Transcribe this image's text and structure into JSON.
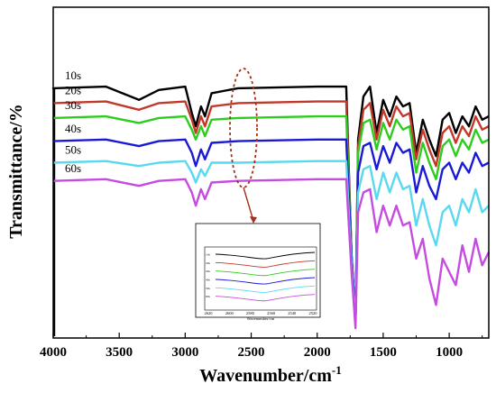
{
  "chart_data": {
    "type": "line",
    "xlabel": "Wavenumber/cm",
    "xlabel_superscript": "-1",
    "ylabel": "Transmittance/%",
    "xlim": [
      4000,
      700
    ],
    "x_reversed": true,
    "x_ticks": [
      "4000",
      "3500",
      "3000",
      "2500",
      "2000",
      "1500",
      "1000"
    ],
    "grid": false,
    "legend": "none",
    "series": [
      {
        "name": "10s",
        "color": "#000000",
        "baseline": 0.24,
        "points": [
          [
            4000,
            0.245
          ],
          [
            3600,
            0.24
          ],
          [
            3350,
            0.28
          ],
          [
            3200,
            0.25
          ],
          [
            3000,
            0.24
          ],
          [
            2950,
            0.32
          ],
          [
            2920,
            0.36
          ],
          [
            2880,
            0.3
          ],
          [
            2850,
            0.33
          ],
          [
            2800,
            0.26
          ],
          [
            2600,
            0.245
          ],
          [
            2000,
            0.24
          ],
          [
            1780,
            0.24
          ],
          [
            1740,
            0.75
          ],
          [
            1710,
            0.95
          ],
          [
            1690,
            0.4
          ],
          [
            1650,
            0.27
          ],
          [
            1600,
            0.24
          ],
          [
            1550,
            0.38
          ],
          [
            1500,
            0.28
          ],
          [
            1450,
            0.33
          ],
          [
            1400,
            0.27
          ],
          [
            1350,
            0.3
          ],
          [
            1300,
            0.29
          ],
          [
            1250,
            0.44
          ],
          [
            1200,
            0.34
          ],
          [
            1150,
            0.4
          ],
          [
            1100,
            0.45
          ],
          [
            1050,
            0.34
          ],
          [
            1000,
            0.32
          ],
          [
            950,
            0.38
          ],
          [
            900,
            0.33
          ],
          [
            850,
            0.36
          ],
          [
            800,
            0.3
          ],
          [
            750,
            0.34
          ],
          [
            700,
            0.33
          ]
        ]
      },
      {
        "name": "20s",
        "color": "#c0392b",
        "baseline": 0.285,
        "points": [
          [
            4000,
            0.29
          ],
          [
            3600,
            0.285
          ],
          [
            3350,
            0.31
          ],
          [
            3200,
            0.29
          ],
          [
            3000,
            0.285
          ],
          [
            2950,
            0.34
          ],
          [
            2920,
            0.38
          ],
          [
            2880,
            0.33
          ],
          [
            2850,
            0.36
          ],
          [
            2800,
            0.3
          ],
          [
            2600,
            0.29
          ],
          [
            2000,
            0.285
          ],
          [
            1780,
            0.285
          ],
          [
            1740,
            0.75
          ],
          [
            1710,
            0.95
          ],
          [
            1690,
            0.42
          ],
          [
            1650,
            0.31
          ],
          [
            1600,
            0.29
          ],
          [
            1550,
            0.4
          ],
          [
            1500,
            0.31
          ],
          [
            1450,
            0.36
          ],
          [
            1400,
            0.3
          ],
          [
            1350,
            0.33
          ],
          [
            1300,
            0.32
          ],
          [
            1250,
            0.46
          ],
          [
            1200,
            0.37
          ],
          [
            1150,
            0.43
          ],
          [
            1100,
            0.48
          ],
          [
            1050,
            0.38
          ],
          [
            1000,
            0.36
          ],
          [
            950,
            0.41
          ],
          [
            900,
            0.36
          ],
          [
            850,
            0.39
          ],
          [
            800,
            0.33
          ],
          [
            750,
            0.37
          ],
          [
            700,
            0.36
          ]
        ]
      },
      {
        "name": "30s",
        "color": "#2ecc1f",
        "baseline": 0.33,
        "points": [
          [
            4000,
            0.335
          ],
          [
            3600,
            0.33
          ],
          [
            3350,
            0.35
          ],
          [
            3200,
            0.335
          ],
          [
            3000,
            0.33
          ],
          [
            2950,
            0.37
          ],
          [
            2920,
            0.4
          ],
          [
            2880,
            0.36
          ],
          [
            2850,
            0.39
          ],
          [
            2800,
            0.34
          ],
          [
            2600,
            0.335
          ],
          [
            2000,
            0.33
          ],
          [
            1780,
            0.33
          ],
          [
            1740,
            0.75
          ],
          [
            1710,
            0.95
          ],
          [
            1690,
            0.44
          ],
          [
            1650,
            0.35
          ],
          [
            1600,
            0.34
          ],
          [
            1550,
            0.43
          ],
          [
            1500,
            0.35
          ],
          [
            1450,
            0.4
          ],
          [
            1400,
            0.34
          ],
          [
            1350,
            0.37
          ],
          [
            1300,
            0.36
          ],
          [
            1250,
            0.5
          ],
          [
            1200,
            0.41
          ],
          [
            1150,
            0.47
          ],
          [
            1100,
            0.52
          ],
          [
            1050,
            0.42
          ],
          [
            1000,
            0.4
          ],
          [
            950,
            0.45
          ],
          [
            900,
            0.4
          ],
          [
            850,
            0.43
          ],
          [
            800,
            0.37
          ],
          [
            750,
            0.41
          ],
          [
            700,
            0.4
          ]
        ]
      },
      {
        "name": "40s",
        "color": "#1a1ad4",
        "baseline": 0.4,
        "points": [
          [
            4000,
            0.405
          ],
          [
            3600,
            0.4
          ],
          [
            3350,
            0.42
          ],
          [
            3200,
            0.405
          ],
          [
            3000,
            0.4
          ],
          [
            2950,
            0.44
          ],
          [
            2920,
            0.48
          ],
          [
            2880,
            0.43
          ],
          [
            2850,
            0.46
          ],
          [
            2800,
            0.41
          ],
          [
            2600,
            0.405
          ],
          [
            2000,
            0.4
          ],
          [
            1780,
            0.4
          ],
          [
            1740,
            0.75
          ],
          [
            1710,
            0.95
          ],
          [
            1690,
            0.5
          ],
          [
            1650,
            0.42
          ],
          [
            1600,
            0.41
          ],
          [
            1550,
            0.49
          ],
          [
            1500,
            0.42
          ],
          [
            1450,
            0.47
          ],
          [
            1400,
            0.41
          ],
          [
            1350,
            0.44
          ],
          [
            1300,
            0.43
          ],
          [
            1250,
            0.56
          ],
          [
            1200,
            0.48
          ],
          [
            1150,
            0.54
          ],
          [
            1100,
            0.58
          ],
          [
            1050,
            0.49
          ],
          [
            1000,
            0.47
          ],
          [
            950,
            0.52
          ],
          [
            900,
            0.47
          ],
          [
            850,
            0.5
          ],
          [
            800,
            0.44
          ],
          [
            750,
            0.48
          ],
          [
            700,
            0.47
          ]
        ]
      },
      {
        "name": "50s",
        "color": "#5ad8ee",
        "baseline": 0.465,
        "points": [
          [
            4000,
            0.47
          ],
          [
            3600,
            0.465
          ],
          [
            3350,
            0.48
          ],
          [
            3200,
            0.47
          ],
          [
            3000,
            0.465
          ],
          [
            2950,
            0.5
          ],
          [
            2920,
            0.53
          ],
          [
            2880,
            0.49
          ],
          [
            2850,
            0.51
          ],
          [
            2800,
            0.47
          ],
          [
            2600,
            0.47
          ],
          [
            2000,
            0.465
          ],
          [
            1780,
            0.465
          ],
          [
            1740,
            0.78
          ],
          [
            1710,
            0.96
          ],
          [
            1690,
            0.56
          ],
          [
            1650,
            0.49
          ],
          [
            1600,
            0.48
          ],
          [
            1550,
            0.58
          ],
          [
            1500,
            0.5
          ],
          [
            1450,
            0.56
          ],
          [
            1400,
            0.5
          ],
          [
            1350,
            0.55
          ],
          [
            1300,
            0.54
          ],
          [
            1250,
            0.66
          ],
          [
            1200,
            0.58
          ],
          [
            1150,
            0.66
          ],
          [
            1100,
            0.72
          ],
          [
            1050,
            0.62
          ],
          [
            1000,
            0.6
          ],
          [
            950,
            0.66
          ],
          [
            900,
            0.58
          ],
          [
            850,
            0.62
          ],
          [
            800,
            0.55
          ],
          [
            750,
            0.62
          ],
          [
            700,
            0.6
          ]
        ]
      },
      {
        "name": "60s",
        "color": "#c64be0",
        "baseline": 0.52,
        "points": [
          [
            4000,
            0.525
          ],
          [
            3600,
            0.52
          ],
          [
            3350,
            0.54
          ],
          [
            3200,
            0.525
          ],
          [
            3000,
            0.52
          ],
          [
            2950,
            0.56
          ],
          [
            2920,
            0.6
          ],
          [
            2880,
            0.55
          ],
          [
            2850,
            0.58
          ],
          [
            2800,
            0.53
          ],
          [
            2600,
            0.525
          ],
          [
            2000,
            0.52
          ],
          [
            1780,
            0.52
          ],
          [
            1740,
            0.8
          ],
          [
            1710,
            0.97
          ],
          [
            1690,
            0.62
          ],
          [
            1650,
            0.56
          ],
          [
            1600,
            0.55
          ],
          [
            1550,
            0.68
          ],
          [
            1500,
            0.6
          ],
          [
            1450,
            0.66
          ],
          [
            1400,
            0.6
          ],
          [
            1350,
            0.66
          ],
          [
            1300,
            0.65
          ],
          [
            1250,
            0.76
          ],
          [
            1200,
            0.7
          ],
          [
            1150,
            0.82
          ],
          [
            1100,
            0.9
          ],
          [
            1050,
            0.76
          ],
          [
            1000,
            0.8
          ],
          [
            950,
            0.84
          ],
          [
            900,
            0.72
          ],
          [
            850,
            0.8
          ],
          [
            800,
            0.7
          ],
          [
            750,
            0.78
          ],
          [
            700,
            0.74
          ]
        ]
      }
    ],
    "inset": {
      "x_ticks": [
        "2620",
        "2600",
        "2580",
        "2560",
        "2540",
        "2520"
      ],
      "xlabel": "Wavenumber/cm",
      "labels": [
        "10s",
        "20s",
        "30s",
        "40s",
        "50s",
        "60s"
      ]
    }
  },
  "colors": {
    "highlight": "#a4301a"
  }
}
